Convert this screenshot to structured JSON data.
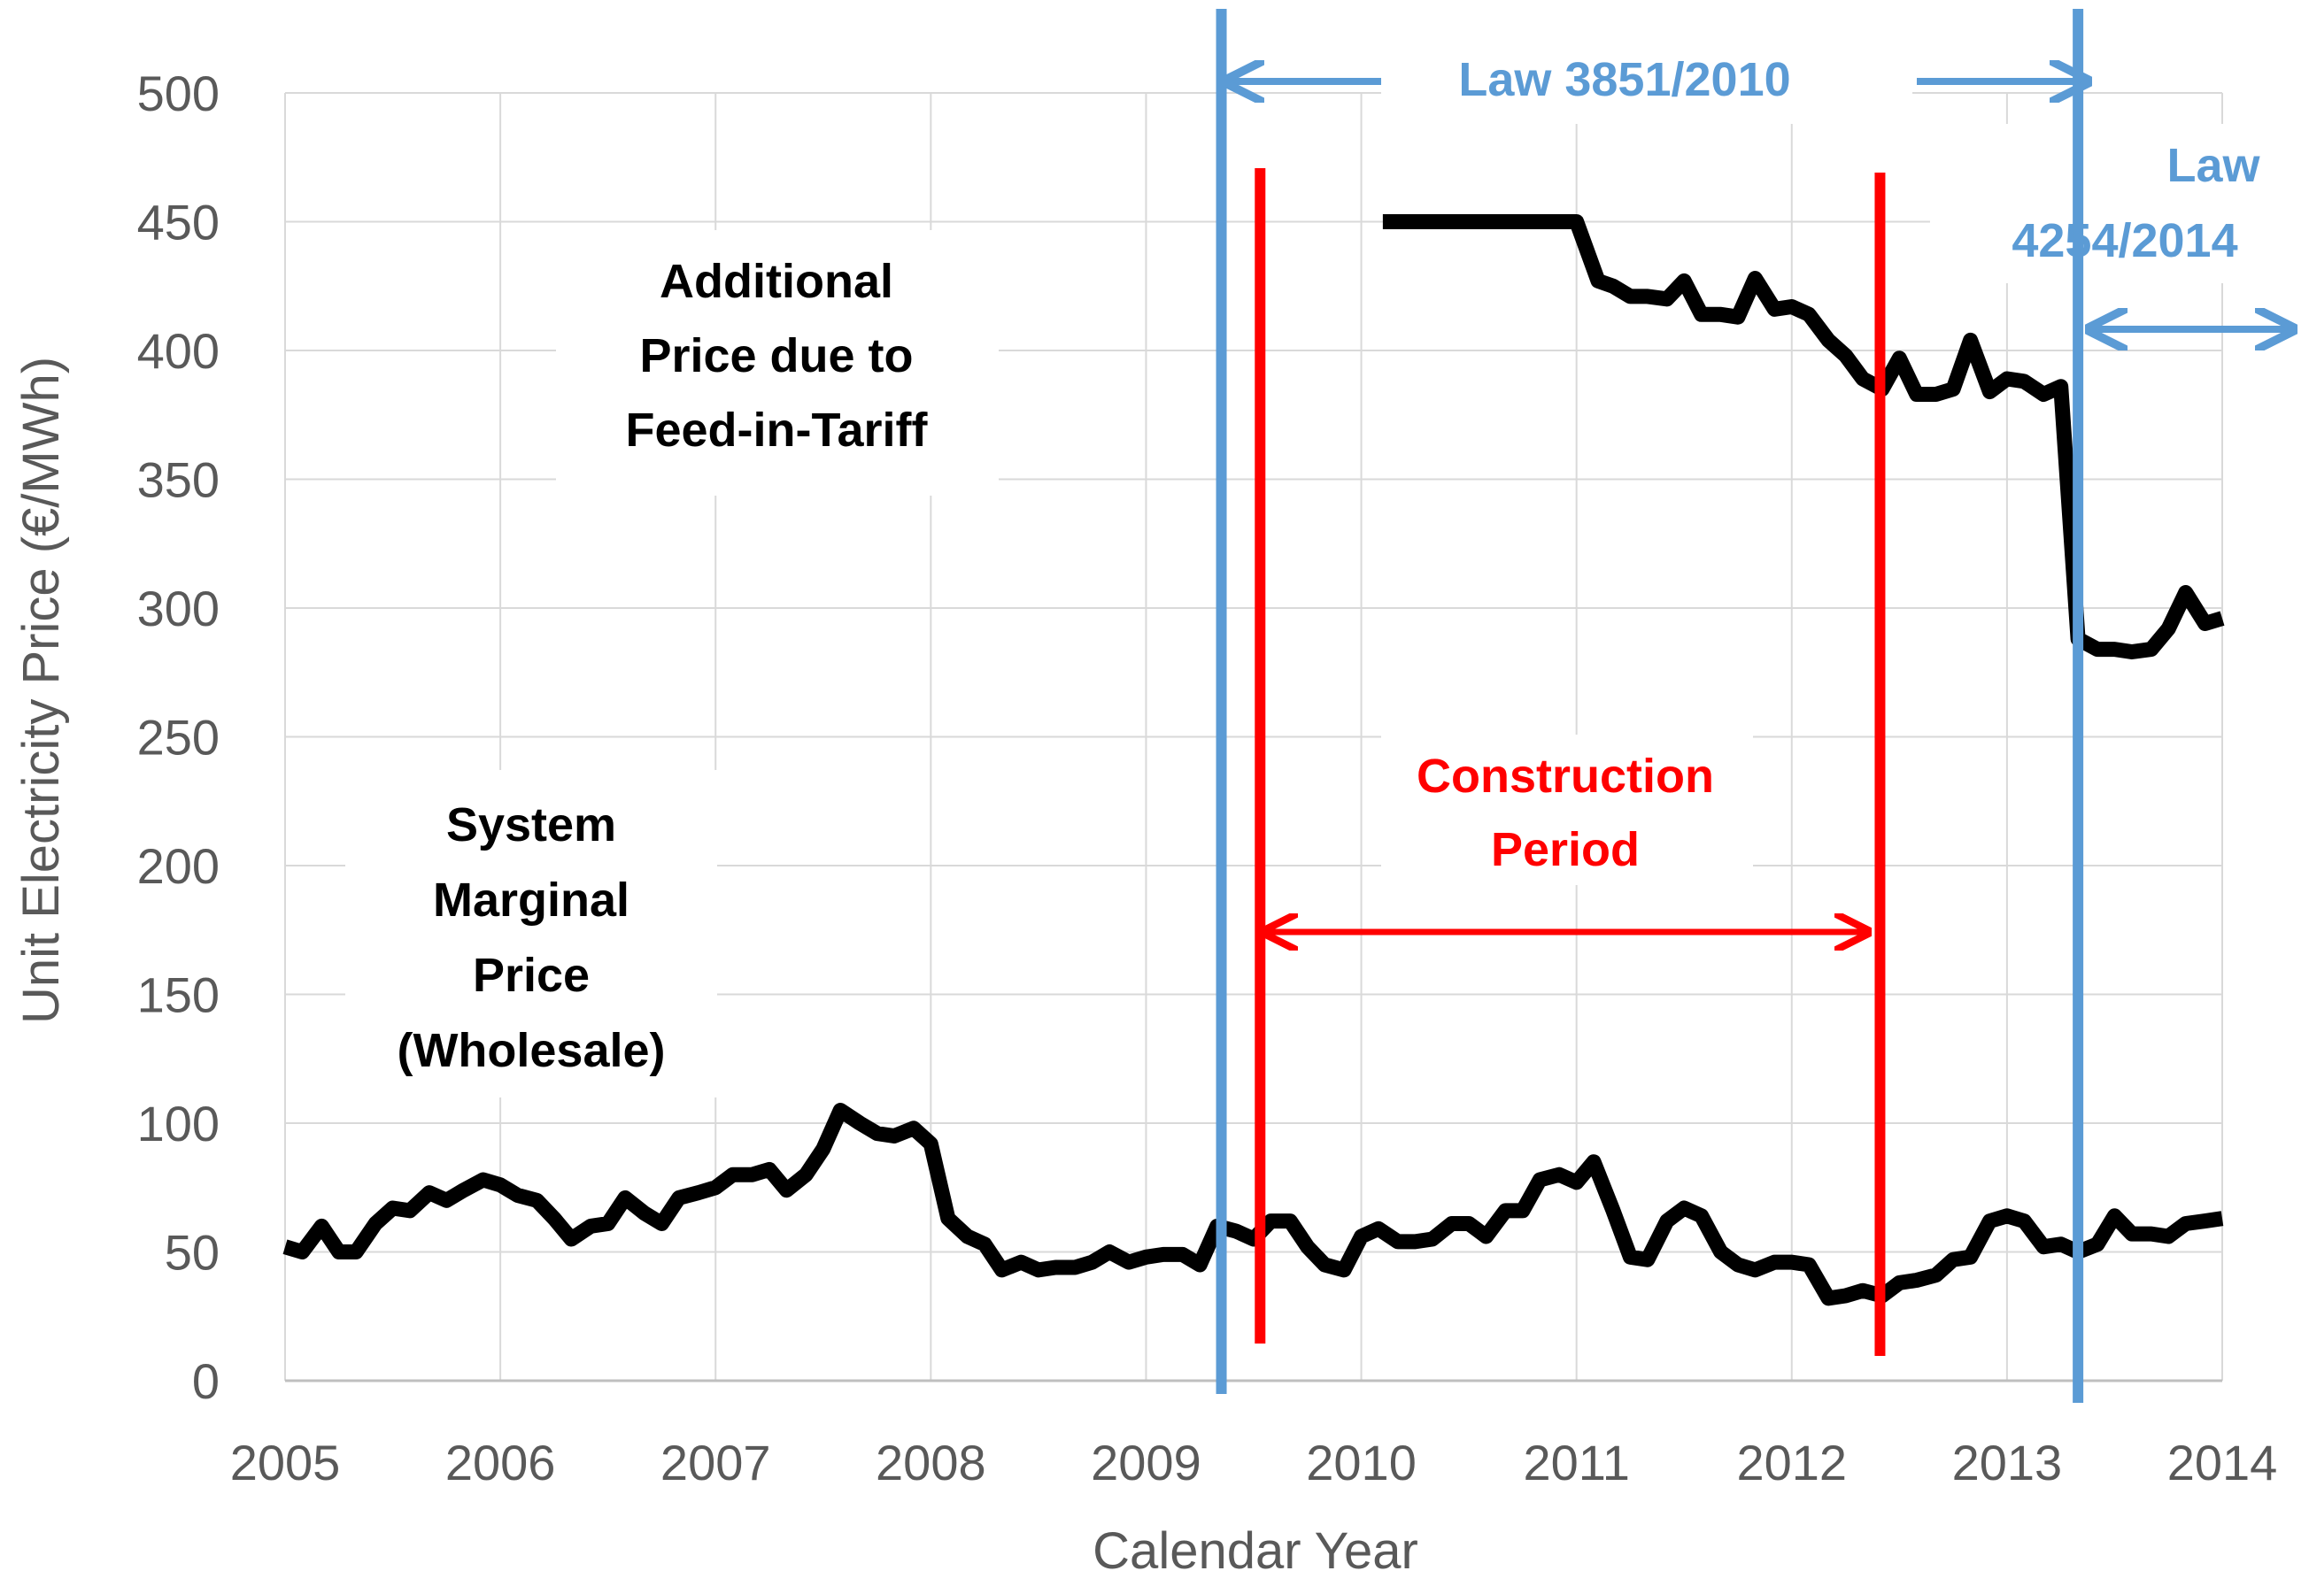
{
  "chart_data": {
    "type": "line",
    "title": "",
    "xlabel": "Calendar Year",
    "ylabel": "Unit Electricity Price (€/MWh)",
    "xlim": [
      2005,
      2014
    ],
    "ylim": [
      0,
      500
    ],
    "x_ticks": [
      "2005",
      "2006",
      "2007",
      "2008",
      "2009",
      "2010",
      "2011",
      "2012",
      "2013",
      "2014"
    ],
    "y_ticks": [
      "0",
      "50",
      "100",
      "150",
      "200",
      "250",
      "300",
      "350",
      "400",
      "450",
      "500"
    ],
    "grid": true,
    "series": [
      {
        "name": "System Marginal Price (Wholesale)",
        "color": "#000000",
        "x": [
          2005.0,
          2005.08,
          2005.17,
          2005.25,
          2005.33,
          2005.42,
          2005.5,
          2005.58,
          2005.67,
          2005.75,
          2005.83,
          2005.92,
          2006.0,
          2006.08,
          2006.17,
          2006.25,
          2006.33,
          2006.42,
          2006.5,
          2006.58,
          2006.67,
          2006.75,
          2006.83,
          2006.92,
          2007.0,
          2007.08,
          2007.17,
          2007.25,
          2007.33,
          2007.42,
          2007.5,
          2007.58,
          2007.67,
          2007.75,
          2007.83,
          2007.92,
          2008.0,
          2008.08,
          2008.17,
          2008.25,
          2008.33,
          2008.42,
          2008.5,
          2008.58,
          2008.67,
          2008.75,
          2008.83,
          2008.92,
          2009.0,
          2009.08,
          2009.17,
          2009.25,
          2009.33,
          2009.42,
          2009.5,
          2009.58,
          2009.67,
          2009.75,
          2009.83,
          2009.92,
          2010.0,
          2010.08,
          2010.17,
          2010.25,
          2010.33,
          2010.42,
          2010.5,
          2010.58,
          2010.67,
          2010.75,
          2010.83,
          2010.92,
          2011.0,
          2011.08,
          2011.17,
          2011.25,
          2011.33,
          2011.42,
          2011.5,
          2011.58,
          2011.67,
          2011.75,
          2011.83,
          2011.92,
          2012.0,
          2012.08,
          2012.17,
          2012.25,
          2012.33,
          2012.42,
          2012.5,
          2012.58,
          2012.67,
          2012.75,
          2012.83,
          2012.92,
          2013.0,
          2013.08,
          2013.17,
          2013.25,
          2013.33,
          2013.42,
          2013.5,
          2013.58,
          2013.67,
          2013.75,
          2013.83,
          2013.92,
          2014.0
        ],
        "values": [
          52,
          50,
          60,
          50,
          50,
          61,
          67,
          66,
          73,
          70,
          74,
          78,
          76,
          72,
          70,
          63,
          55,
          60,
          61,
          71,
          65,
          61,
          71,
          73,
          75,
          80,
          80,
          82,
          74,
          80,
          90,
          105,
          100,
          96,
          95,
          98,
          92,
          63,
          56,
          53,
          43,
          46,
          43,
          44,
          44,
          46,
          50,
          46,
          48,
          49,
          49,
          45,
          60,
          58,
          55,
          62,
          62,
          52,
          45,
          43,
          56,
          59,
          54,
          54,
          55,
          61,
          61,
          56,
          66,
          66,
          78,
          80,
          77,
          85,
          66,
          48,
          47,
          62,
          67,
          64,
          50,
          45,
          43,
          46,
          46,
          45,
          32,
          33,
          35,
          33,
          38,
          39,
          41,
          47,
          48,
          62,
          64,
          62,
          52,
          53,
          50,
          53,
          64,
          57,
          57,
          56,
          61,
          62,
          63
        ]
      },
      {
        "name": "Additional Price due to Feed-in-Tariff",
        "color": "#000000",
        "x": [
          2010.1,
          2010.25,
          2010.5,
          2010.75,
          2011.0,
          2011.1,
          2011.17,
          2011.25,
          2011.33,
          2011.42,
          2011.5,
          2011.58,
          2011.67,
          2011.75,
          2011.83,
          2011.92,
          2012.0,
          2012.08,
          2012.17,
          2012.25,
          2012.33,
          2012.42,
          2012.5,
          2012.58,
          2012.67,
          2012.75,
          2012.83,
          2012.92,
          2013.0,
          2013.08,
          2013.17,
          2013.25,
          2013.33,
          2013.42,
          2013.5,
          2013.58,
          2013.67,
          2013.75,
          2013.83,
          2013.92,
          2014.0
        ],
        "values": [
          450,
          450,
          450,
          450,
          450,
          427,
          425,
          421,
          421,
          420,
          427,
          414,
          414,
          413,
          428,
          416,
          417,
          414,
          404,
          398,
          389,
          385,
          397,
          383,
          383,
          385,
          404,
          384,
          389,
          388,
          383,
          386,
          288,
          284,
          284,
          283,
          284,
          292,
          306,
          294,
          296
        ]
      }
    ],
    "vertical_markers": [
      {
        "x": 2009.35,
        "color": "#5b9bd5",
        "label": "Law 3851/2010 start"
      },
      {
        "x": 2009.53,
        "color": "#ff0000",
        "label": "Construction start"
      },
      {
        "x": 2012.41,
        "color": "#ff0000",
        "label": "Construction end"
      },
      {
        "x": 2013.33,
        "color": "#5b9bd5",
        "label": "Law 4254/2014 start"
      }
    ],
    "annotations": {
      "feed_in_tariff": [
        "Additional",
        "Price due to",
        "Feed-in-Tariff"
      ],
      "system_marginal": [
        "System",
        "Marginal",
        "Price",
        "(Wholesale)"
      ],
      "construction": [
        "Construction",
        "Period"
      ],
      "law_3851": "Law 3851/2010",
      "law_4254": [
        "Law",
        "4254/2014"
      ]
    }
  }
}
